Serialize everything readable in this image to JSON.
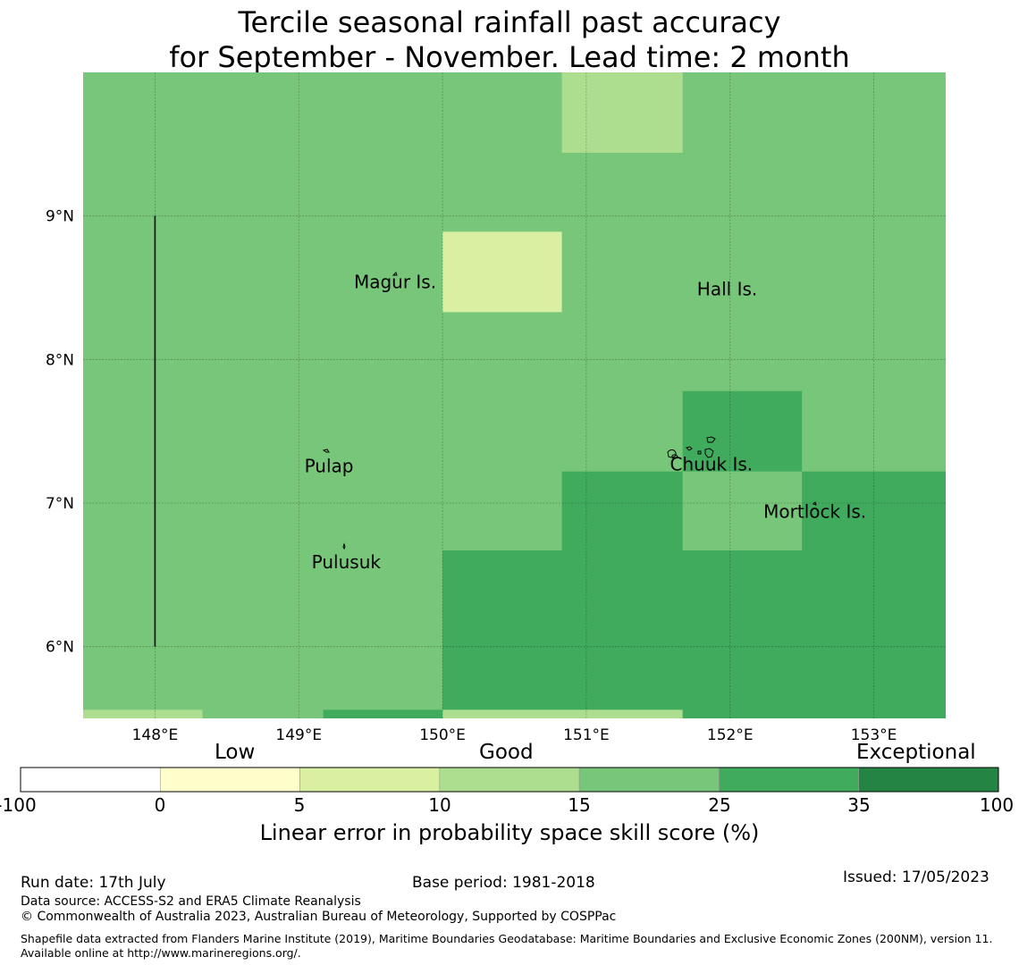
{
  "title": {
    "line1": "Tercile seasonal rainfall past accuracy",
    "line2": "for September - November. Lead time: 2 month"
  },
  "map": {
    "lon_range": [
      147.5,
      153.5
    ],
    "lat_range": [
      5.5,
      10.0
    ],
    "lon_ticks": [
      {
        "value": 148,
        "label": "148°E"
      },
      {
        "value": 149,
        "label": "149°E"
      },
      {
        "value": 150,
        "label": "150°E"
      },
      {
        "value": 151,
        "label": "151°E"
      },
      {
        "value": 152,
        "label": "152°E"
      },
      {
        "value": 153,
        "label": "153°E"
      }
    ],
    "lat_ticks": [
      {
        "value": 9,
        "label": "9°N"
      },
      {
        "value": 8,
        "label": "8°N"
      },
      {
        "value": 7,
        "label": "7°N"
      },
      {
        "value": 6,
        "label": "6°N"
      }
    ],
    "background_class": 4,
    "cells": [
      {
        "lon": [
          150.83,
          151.67
        ],
        "lat": [
          9.44,
          10.0
        ],
        "class": 3
      },
      {
        "lon": [
          150.0,
          150.83
        ],
        "lat": [
          8.33,
          8.89
        ],
        "class": 2
      },
      {
        "lon": [
          151.67,
          152.5
        ],
        "lat": [
          7.22,
          7.78
        ],
        "class": 5
      },
      {
        "lon": [
          150.83,
          151.67
        ],
        "lat": [
          6.67,
          7.22
        ],
        "class": 5
      },
      {
        "lon": [
          152.5,
          153.5
        ],
        "lat": [
          6.67,
          7.22
        ],
        "class": 5
      },
      {
        "lon": [
          150.0,
          153.5
        ],
        "lat": [
          5.5,
          6.67
        ],
        "class": 5
      },
      {
        "lon": [
          147.5,
          148.33
        ],
        "lat": [
          5.5,
          5.56
        ],
        "class": 3
      },
      {
        "lon": [
          149.17,
          150.0
        ],
        "lat": [
          5.5,
          5.56
        ],
        "class": 5
      },
      {
        "lon": [
          150.0,
          151.67
        ],
        "lat": [
          5.5,
          5.56
        ],
        "class": 3
      }
    ],
    "boundary_line": {
      "lon": 148.0,
      "lat": [
        6.0,
        9.0
      ]
    },
    "places": [
      {
        "name": "Magur Is.",
        "lon": 149.67,
        "lat": 8.53
      },
      {
        "name": "Hall Is.",
        "lon": 151.98,
        "lat": 8.48
      },
      {
        "name": "Pulap",
        "lon": 149.21,
        "lat": 7.25
      },
      {
        "name": "Chuuk Is.",
        "lon": 151.87,
        "lat": 7.26
      },
      {
        "name": "Mortlock Is.",
        "lon": 152.59,
        "lat": 6.93
      },
      {
        "name": "Pulusuk",
        "lon": 149.33,
        "lat": 6.58
      }
    ]
  },
  "colorbar": {
    "categories": [
      {
        "word": "Low",
        "position": 1.5
      },
      {
        "word": "Good",
        "position": 3.5
      },
      {
        "word": "Exceptional",
        "position": 6.0
      }
    ],
    "ticks": [
      "-100",
      "0",
      "5",
      "10",
      "15",
      "25",
      "35",
      "100"
    ],
    "colors": [
      "#ffffff",
      "#ffffcc",
      "#d9f0a3",
      "#addd8e",
      "#78c679",
      "#41ab5d",
      "#238443"
    ],
    "label": "Linear error in probability space skill score (%)"
  },
  "footer": {
    "run_date": "Run date: 17th July",
    "base_period": "Base period: 1981-2018",
    "issued": "Issued: 17/05/2023",
    "data_source": "Data source: ACCESS-S2 and ERA5 Climate Reanalysis",
    "copyright": "© Commonwealth of Australia 2023, Australian Bureau of Meteorology, Supported by COSPPac",
    "shapefile": "Shapefile data extracted from Flanders Marine Institute (2019), Maritime Boundaries Geodatabase: Maritime Boundaries and Exclusive Economic Zones (200NM), version 11. Available online at http://www.marineregions.org/."
  }
}
